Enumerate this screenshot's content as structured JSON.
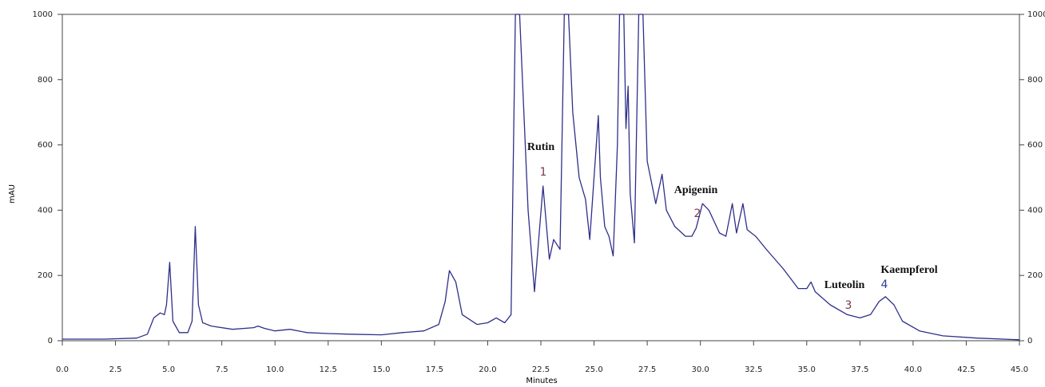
{
  "chart_data": {
    "type": "line",
    "x_label": "Minutes",
    "y_label": "mAU",
    "color": "#2e2f8a",
    "x": [
      0.0,
      2.0,
      3.5,
      4.0,
      4.3,
      4.6,
      4.8,
      4.9,
      5.05,
      5.2,
      5.5,
      5.9,
      6.1,
      6.25,
      6.4,
      6.6,
      7.0,
      8.0,
      9.0,
      9.2,
      9.5,
      10.0,
      10.7,
      11.5,
      12.5,
      13.5,
      15.0,
      16.0,
      17.0,
      17.7,
      18.0,
      18.2,
      18.5,
      18.8,
      19.5,
      20.0,
      20.4,
      20.8,
      21.1,
      21.3,
      21.5,
      21.9,
      22.2,
      22.6,
      22.9,
      23.1,
      23.4,
      23.6,
      23.8,
      24.0,
      24.3,
      24.6,
      24.8,
      25.2,
      25.3,
      25.5,
      25.7,
      25.9,
      26.1,
      26.2,
      26.4,
      26.5,
      26.6,
      26.7,
      26.9,
      27.1,
      27.3,
      27.5,
      27.9,
      28.2,
      28.4,
      28.8,
      29.3,
      29.6,
      29.8,
      30.1,
      30.4,
      30.9,
      31.2,
      31.5,
      31.7,
      32.0,
      32.2,
      32.6,
      33.1,
      33.9,
      34.6,
      35.0,
      35.2,
      35.4,
      36.1,
      36.9,
      37.5,
      38.0,
      38.4,
      38.7,
      39.1,
      39.5,
      40.3,
      41.4,
      43.0,
      45.0
    ],
    "values": [
      5,
      5,
      8,
      20,
      70,
      85,
      80,
      110,
      240,
      60,
      25,
      25,
      60,
      350,
      110,
      55,
      45,
      35,
      40,
      45,
      38,
      30,
      35,
      25,
      22,
      20,
      18,
      25,
      30,
      50,
      120,
      215,
      180,
      80,
      50,
      55,
      70,
      55,
      80,
      1000,
      1000,
      400,
      150,
      474,
      250,
      310,
      280,
      1000,
      1000,
      700,
      500,
      433,
      310,
      690,
      500,
      350,
      320,
      260,
      600,
      1000,
      1000,
      650,
      780,
      450,
      300,
      1000,
      1000,
      550,
      420,
      510,
      400,
      350,
      320,
      320,
      345,
      420,
      400,
      330,
      320,
      420,
      330,
      420,
      340,
      320,
      280,
      220,
      160,
      160,
      180,
      150,
      110,
      80,
      70,
      80,
      120,
      135,
      110,
      60,
      30,
      15,
      8,
      3
    ],
    "xlim": [
      0,
      45
    ],
    "ylim": [
      0,
      1000
    ],
    "xticks": [
      {
        "value": 0,
        "label": "0.0"
      },
      {
        "value": 2.5,
        "label": "2.5"
      },
      {
        "value": 5,
        "label": "5.0"
      },
      {
        "value": 7.5,
        "label": "7.5"
      },
      {
        "value": 10,
        "label": "10.0"
      },
      {
        "value": 12.5,
        "label": "12.5"
      },
      {
        "value": 15,
        "label": "15.0"
      },
      {
        "value": 17.5,
        "label": "17.5"
      },
      {
        "value": 20,
        "label": "20.0"
      },
      {
        "value": 22.5,
        "label": "22.5"
      },
      {
        "value": 25,
        "label": "25.0"
      },
      {
        "value": 27.5,
        "label": "27.5"
      },
      {
        "value": 30,
        "label": "30.0"
      },
      {
        "value": 32.5,
        "label": "32.5"
      },
      {
        "value": 35,
        "label": "35.0"
      },
      {
        "value": 37.5,
        "label": "37.5"
      },
      {
        "value": 40,
        "label": "40.0"
      },
      {
        "value": 42.5,
        "label": "42.5"
      },
      {
        "value": 45,
        "label": "45.0"
      }
    ],
    "yticks": [
      0,
      200,
      400,
      600,
      800,
      1000
    ],
    "annotations": [
      {
        "label": "Rutin",
        "marker": "1"
      },
      {
        "label": "Apigenin",
        "marker": "2"
      },
      {
        "label": "Luteolin",
        "marker": "3"
      },
      {
        "label": "Kaempferol",
        "marker": "4"
      }
    ]
  }
}
